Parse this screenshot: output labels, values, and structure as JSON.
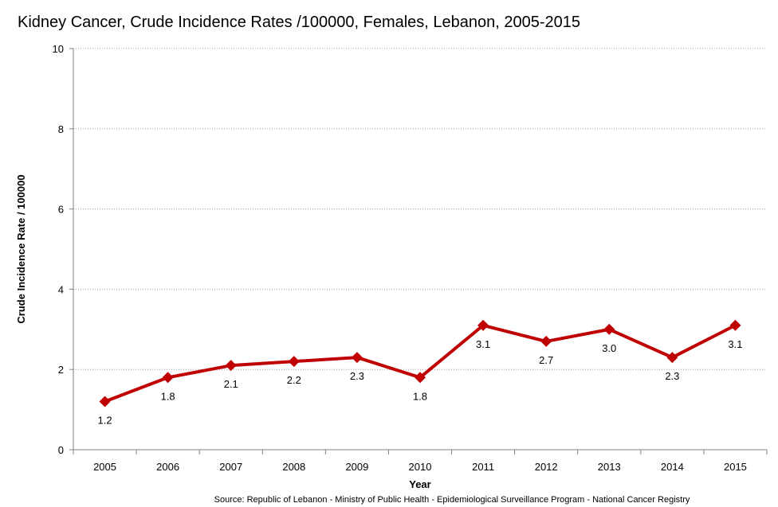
{
  "chart_data": {
    "type": "line",
    "title": "Kidney Cancer, Crude Incidence Rates /100000, Females, Lebanon, 2005-2015",
    "xlabel": "Year",
    "ylabel": "Crude Incidence Rate / 100000",
    "categories": [
      "2005",
      "2006",
      "2007",
      "2008",
      "2009",
      "2010",
      "2011",
      "2012",
      "2013",
      "2014",
      "2015"
    ],
    "series": [
      {
        "values": [
          1.2,
          1.8,
          2.1,
          2.2,
          2.3,
          1.8,
          3.1,
          2.7,
          3.0,
          2.3,
          3.1
        ],
        "labels": [
          "1.2",
          "1.8",
          "2.1",
          "2.2",
          "2.3",
          "1.8",
          "3.1",
          "2.7",
          "3.0",
          "2.3",
          "3.1"
        ],
        "color": "#c00000",
        "marker": "diamond"
      }
    ],
    "ylim": [
      0,
      10
    ],
    "yticks": [
      "0",
      "2",
      "4",
      "6",
      "8",
      "10"
    ],
    "grid": true,
    "legend": "none",
    "source": "Source:  Republic of Lebanon - Ministry of Public Health - Epidemiological Surveillance Program - National Cancer Registry"
  }
}
